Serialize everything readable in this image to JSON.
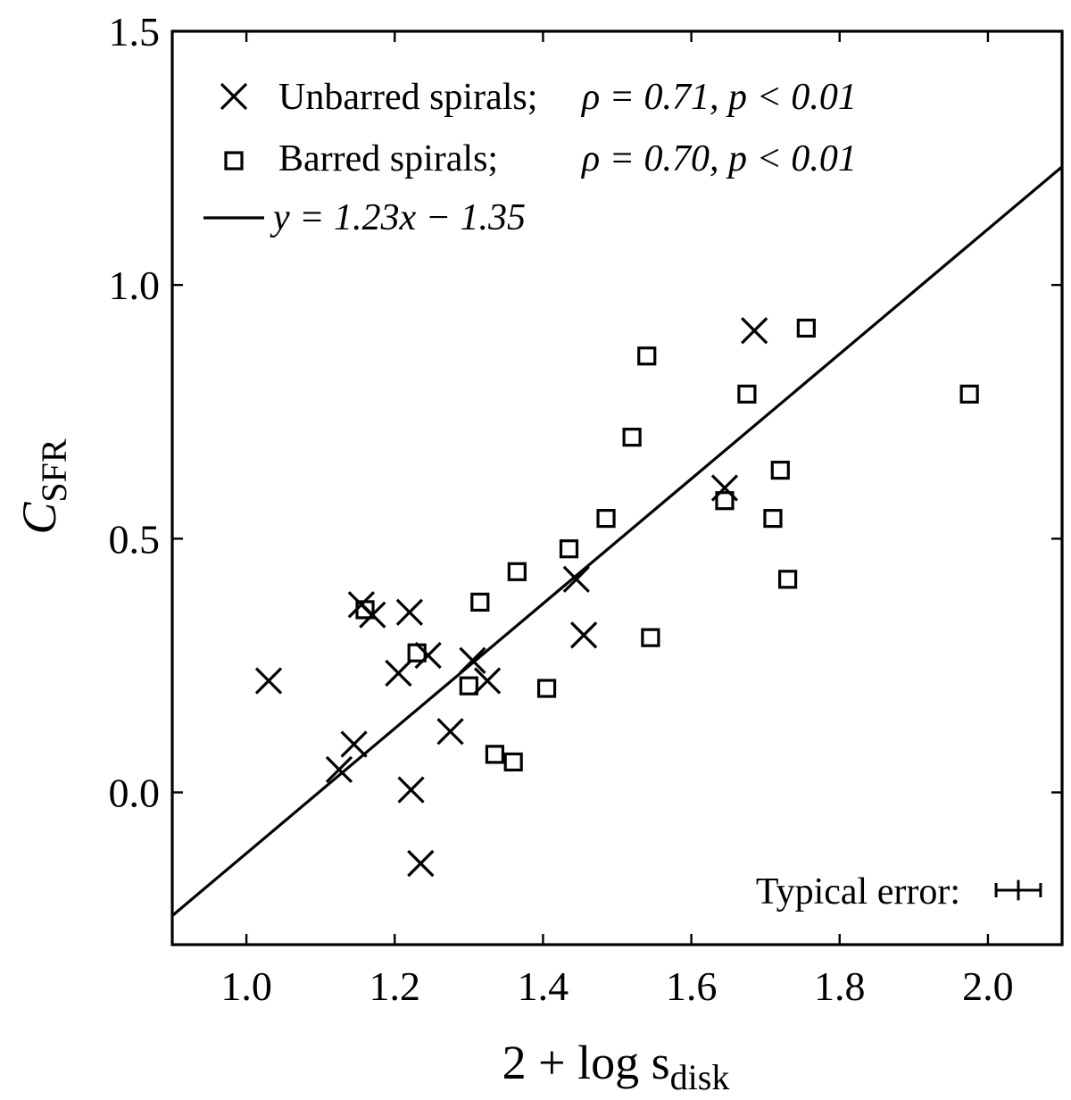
{
  "chart_data": {
    "type": "scatter",
    "xlabel": "2 + log s",
    "xlabel_sub": "disk",
    "ylabel": "C",
    "ylabel_sub": "SFR",
    "xlim": [
      0.9,
      2.1
    ],
    "ylim": [
      -0.3,
      1.5
    ],
    "xticks": [
      {
        "value": 1.0,
        "label": "1.0"
      },
      {
        "value": 1.2,
        "label": "1.2"
      },
      {
        "value": 1.4,
        "label": "1.4"
      },
      {
        "value": 1.6,
        "label": "1.6"
      },
      {
        "value": 1.8,
        "label": "1.8"
      },
      {
        "value": 2.0,
        "label": "2.0"
      }
    ],
    "yticks": [
      {
        "value": 0.0,
        "label": "0.0"
      },
      {
        "value": 0.5,
        "label": "0.5"
      },
      {
        "value": 1.0,
        "label": "1.0"
      },
      {
        "value": 1.5,
        "label": "1.5"
      }
    ],
    "grid": false,
    "legend_position": "top-left",
    "series": [
      {
        "name": "Unbarred spirals;",
        "stat": "ρ = 0.71, p < 0.01",
        "marker": "x",
        "points": [
          {
            "x": 1.03,
            "y": 0.22
          },
          {
            "x": 1.125,
            "y": 0.045
          },
          {
            "x": 1.145,
            "y": 0.095
          },
          {
            "x": 1.155,
            "y": 0.37
          },
          {
            "x": 1.17,
            "y": 0.35
          },
          {
            "x": 1.205,
            "y": 0.235
          },
          {
            "x": 1.22,
            "y": 0.355
          },
          {
            "x": 1.222,
            "y": 0.005
          },
          {
            "x": 1.235,
            "y": -0.14
          },
          {
            "x": 1.245,
            "y": 0.27
          },
          {
            "x": 1.275,
            "y": 0.12
          },
          {
            "x": 1.305,
            "y": 0.26
          },
          {
            "x": 1.325,
            "y": 0.22
          },
          {
            "x": 1.445,
            "y": 0.42
          },
          {
            "x": 1.455,
            "y": 0.31
          },
          {
            "x": 1.645,
            "y": 0.6
          },
          {
            "x": 1.685,
            "y": 0.91
          }
        ]
      },
      {
        "name": "Barred spirals;",
        "stat": "ρ = 0.70, p < 0.01",
        "marker": "square",
        "points": [
          {
            "x": 1.16,
            "y": 0.36
          },
          {
            "x": 1.23,
            "y": 0.275
          },
          {
            "x": 1.3,
            "y": 0.21
          },
          {
            "x": 1.315,
            "y": 0.375
          },
          {
            "x": 1.335,
            "y": 0.075
          },
          {
            "x": 1.36,
            "y": 0.06
          },
          {
            "x": 1.365,
            "y": 0.435
          },
          {
            "x": 1.405,
            "y": 0.205
          },
          {
            "x": 1.435,
            "y": 0.48
          },
          {
            "x": 1.485,
            "y": 0.54
          },
          {
            "x": 1.52,
            "y": 0.7
          },
          {
            "x": 1.54,
            "y": 0.86
          },
          {
            "x": 1.545,
            "y": 0.305
          },
          {
            "x": 1.645,
            "y": 0.575
          },
          {
            "x": 1.675,
            "y": 0.785
          },
          {
            "x": 1.71,
            "y": 0.54
          },
          {
            "x": 1.72,
            "y": 0.635
          },
          {
            "x": 1.73,
            "y": 0.42
          },
          {
            "x": 1.755,
            "y": 0.915
          },
          {
            "x": 1.975,
            "y": 0.785
          }
        ]
      }
    ],
    "fit_line": {
      "label": "y = 1.23x − 1.35",
      "slope": 1.23,
      "intercept": -1.35
    },
    "typical_error": {
      "label": "Typical error:",
      "x_err": 0.03,
      "y_err": 0.02
    }
  }
}
